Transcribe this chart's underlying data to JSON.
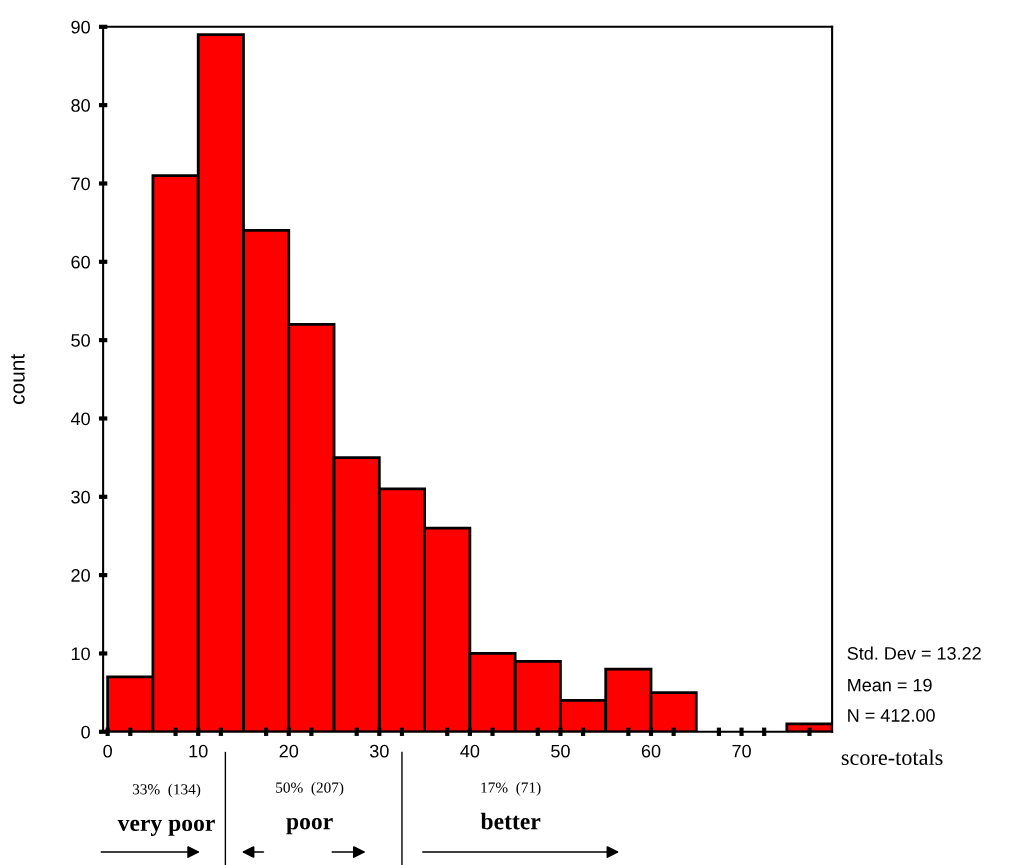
{
  "chart_data": {
    "type": "histogram",
    "bins": [
      0,
      5,
      10,
      15,
      20,
      25,
      30,
      35,
      40,
      45,
      50,
      55,
      60,
      65,
      70,
      75,
      80
    ],
    "values": [
      7,
      71,
      89,
      64,
      52,
      35,
      31,
      26,
      10,
      9,
      4,
      8,
      5,
      0,
      0,
      1
    ],
    "color": "#ff0000",
    "xlabel": "score-totals",
    "ylabel": "count",
    "xlim": [
      -0.5,
      80
    ],
    "ylim": [
      0,
      90
    ],
    "xticks": [
      0,
      10,
      20,
      30,
      40,
      50,
      60,
      70,
      {
        "value": 2.5,
        "label": null
      },
      {
        "value": 7.5,
        "label": null
      },
      {
        "value": 12.5,
        "label": null
      },
      {
        "value": 17.5,
        "label": null
      },
      {
        "value": 22.5,
        "label": null
      },
      {
        "value": 27.5,
        "label": null
      },
      {
        "value": 32.5,
        "label": null
      },
      {
        "value": 37.5,
        "label": null
      },
      {
        "value": 42.5,
        "label": null
      },
      {
        "value": 47.5,
        "label": null
      },
      {
        "value": 52.5,
        "label": null
      },
      {
        "value": 57.5,
        "label": null
      },
      {
        "value": 62.5,
        "label": null
      },
      {
        "value": 67.5,
        "label": null
      },
      {
        "value": 72.5,
        "label": null
      },
      {
        "value": 77.5,
        "label": null
      }
    ],
    "yticks": [
      0,
      10,
      20,
      30,
      40,
      50,
      60,
      70,
      80,
      90
    ],
    "grid": false,
    "legend": false,
    "annotations": [
      "Std. Dev = 13.22",
      "Mean = 19",
      "N = 412.00",
      "33%  (134)",
      "very poor",
      "50%  (207)",
      "poor",
      "17%  (71)",
      "better"
    ]
  }
}
